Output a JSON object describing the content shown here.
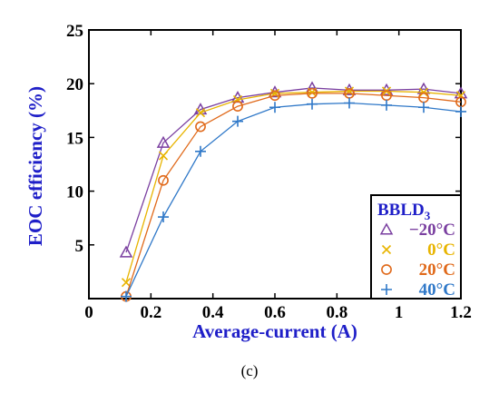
{
  "chart_data": {
    "type": "line",
    "title": "",
    "xlabel": "Average-current (A)",
    "ylabel": "EOC efficiency (%)",
    "xlim": [
      0,
      1.2
    ],
    "ylim": [
      0,
      25
    ],
    "xticks": [
      "0",
      "0.2",
      "0.4",
      "0.6",
      "0.8",
      "1",
      "1.2"
    ],
    "yticks": [
      "5",
      "10",
      "15",
      "20",
      "25"
    ],
    "grid": false,
    "legend_position": "bottom-right",
    "legend_title": "BBLD",
    "legend_title_subscript": "3",
    "x": [
      0.12,
      0.24,
      0.36,
      0.48,
      0.6,
      0.72,
      0.84,
      0.96,
      1.08,
      1.2
    ],
    "series": [
      {
        "name": "−20°C",
        "marker": "triangle",
        "color": "#7a3fa0",
        "values": [
          4.3,
          14.5,
          17.6,
          18.7,
          19.2,
          19.6,
          19.4,
          19.4,
          19.5,
          19.1
        ]
      },
      {
        "name": "0°C",
        "marker": "x",
        "color": "#e8b400",
        "values": [
          1.5,
          13.3,
          17.3,
          18.5,
          19.1,
          19.2,
          19.3,
          19.3,
          19.2,
          18.9
        ]
      },
      {
        "name": "20°C",
        "marker": "circle",
        "color": "#e0691a",
        "values": [
          0.2,
          11.0,
          16.0,
          17.9,
          18.9,
          19.1,
          19.1,
          18.9,
          18.7,
          18.3
        ]
      },
      {
        "name": "40°C",
        "marker": "plus",
        "color": "#2f78c8",
        "values": [
          0.2,
          7.6,
          13.7,
          16.5,
          17.8,
          18.1,
          18.2,
          18.0,
          17.8,
          17.4
        ]
      }
    ]
  },
  "caption": "(c)"
}
